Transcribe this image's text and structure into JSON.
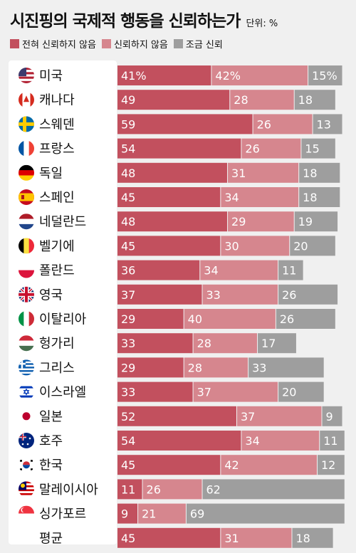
{
  "header": {
    "title": "시진핑의 국제적 행동을 신뢰하는가",
    "unit": "단위: %"
  },
  "colors": {
    "none": "#c2505e",
    "not": "#d6868e",
    "some": "#9e9e9e",
    "background": "#f0f0f0"
  },
  "chart_data": {
    "type": "bar",
    "stacked": true,
    "orientation": "horizontal",
    "title": "시진핑의 국제적 행동을 신뢰하는가",
    "unit": "단위: %",
    "legend_position": "top-left",
    "categories": [
      "미국",
      "캐나다",
      "스웨덴",
      "프랑스",
      "독일",
      "스페인",
      "네덜란드",
      "벨기에",
      "폴란드",
      "영국",
      "이탈리아",
      "헝가리",
      "그리스",
      "이스라엘",
      "일본",
      "호주",
      "한국",
      "말레이시아",
      "싱가포르",
      "평균"
    ],
    "flags": [
      "us-flag-icon",
      "canada-flag-icon",
      "sweden-flag-icon",
      "france-flag-icon",
      "germany-flag-icon",
      "spain-flag-icon",
      "netherlands-flag-icon",
      "belgium-flag-icon",
      "poland-flag-icon",
      "uk-flag-icon",
      "italy-flag-icon",
      "hungary-flag-icon",
      "greece-flag-icon",
      "israel-flag-icon",
      "japan-flag-icon",
      "australia-flag-icon",
      "korea-flag-icon",
      "malaysia-flag-icon",
      "singapore-flag-icon",
      ""
    ],
    "series": [
      {
        "name": "전혀 신뢰하지 않음",
        "values": [
          41,
          49,
          59,
          54,
          48,
          45,
          48,
          45,
          36,
          37,
          29,
          33,
          29,
          33,
          52,
          54,
          45,
          11,
          9,
          45
        ]
      },
      {
        "name": "신뢰하지 않음",
        "values": [
          42,
          28,
          26,
          26,
          31,
          34,
          29,
          30,
          34,
          33,
          40,
          28,
          28,
          37,
          37,
          34,
          42,
          26,
          21,
          31
        ]
      },
      {
        "name": "조금 신뢰",
        "values": [
          15,
          18,
          13,
          15,
          18,
          18,
          19,
          20,
          11,
          26,
          26,
          17,
          33,
          20,
          9,
          11,
          12,
          62,
          69,
          18
        ]
      }
    ],
    "value_labels": [
      [
        "41%",
        "42%",
        "15%"
      ],
      [
        "49",
        "28",
        "18"
      ],
      [
        "59",
        "26",
        "13"
      ],
      [
        "54",
        "26",
        "15"
      ],
      [
        "48",
        "31",
        "18"
      ],
      [
        "45",
        "34",
        "18"
      ],
      [
        "48",
        "29",
        "19"
      ],
      [
        "45",
        "30",
        "20"
      ],
      [
        "36",
        "34",
        "11"
      ],
      [
        "37",
        "33",
        "26"
      ],
      [
        "29",
        "40",
        "26"
      ],
      [
        "33",
        "28",
        "17"
      ],
      [
        "29",
        "28",
        "33"
      ],
      [
        "33",
        "37",
        "20"
      ],
      [
        "52",
        "37",
        "9"
      ],
      [
        "54",
        "34",
        "11"
      ],
      [
        "45",
        "42",
        "12"
      ],
      [
        "11",
        "26",
        "62"
      ],
      [
        "9",
        "21",
        "69"
      ],
      [
        "45",
        "31",
        "18"
      ]
    ]
  }
}
